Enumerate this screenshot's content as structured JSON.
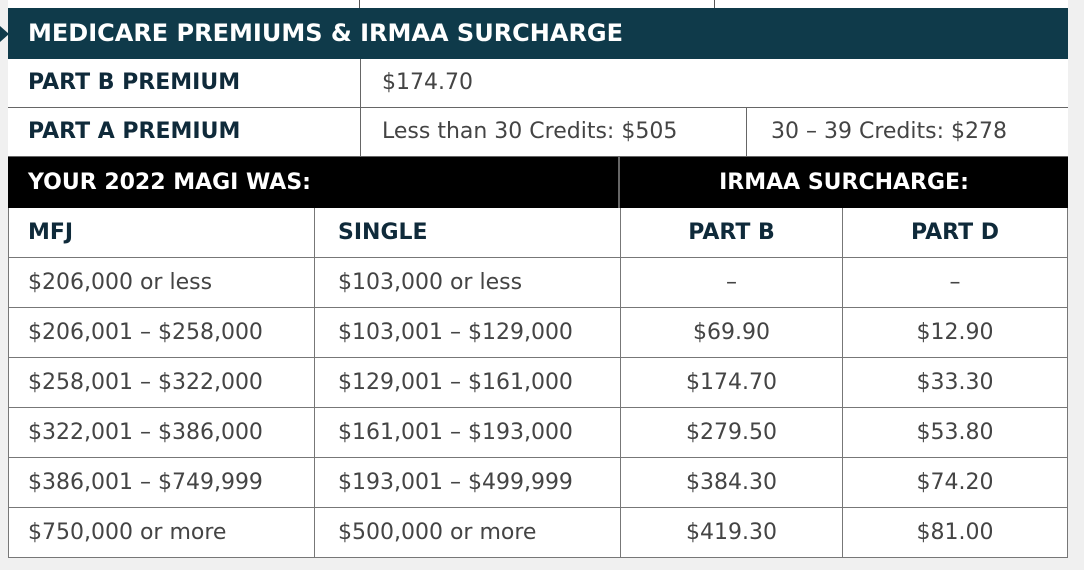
{
  "title": "MEDICARE PREMIUMS & IRMAA SURCHARGE",
  "part_b": {
    "label": "PART B PREMIUM",
    "value": "$174.70"
  },
  "part_a": {
    "label": "PART A PREMIUM",
    "value1": "Less than 30 Credits: $505",
    "value2": "30 – 39 Credits: $278"
  },
  "magi_header": "YOUR 2022 MAGI WAS:",
  "irmaa_header": "IRMAA SURCHARGE:",
  "columns": [
    "MFJ",
    "SINGLE",
    "PART B",
    "PART D"
  ],
  "rows": [
    [
      "$206,000 or less",
      "$103,000 or less",
      "–",
      "–"
    ],
    [
      "$206,001 – $258,000",
      "$103,001 – $129,000",
      "$69.90",
      "$12.90"
    ],
    [
      "$258,001 – $322,000",
      "$129,001 – $161,000",
      "$174.70",
      "$33.30"
    ],
    [
      "$322,001 – $386,000",
      "$161,001 – $193,000",
      "$279.50",
      "$53.80"
    ],
    [
      "$386,001 – $749,999",
      "$193,001 – $499,999",
      "$384.30",
      "$74.20"
    ],
    [
      "$750,000 or more",
      "$500,000 or more",
      "$419.30",
      "$81.00"
    ]
  ]
}
